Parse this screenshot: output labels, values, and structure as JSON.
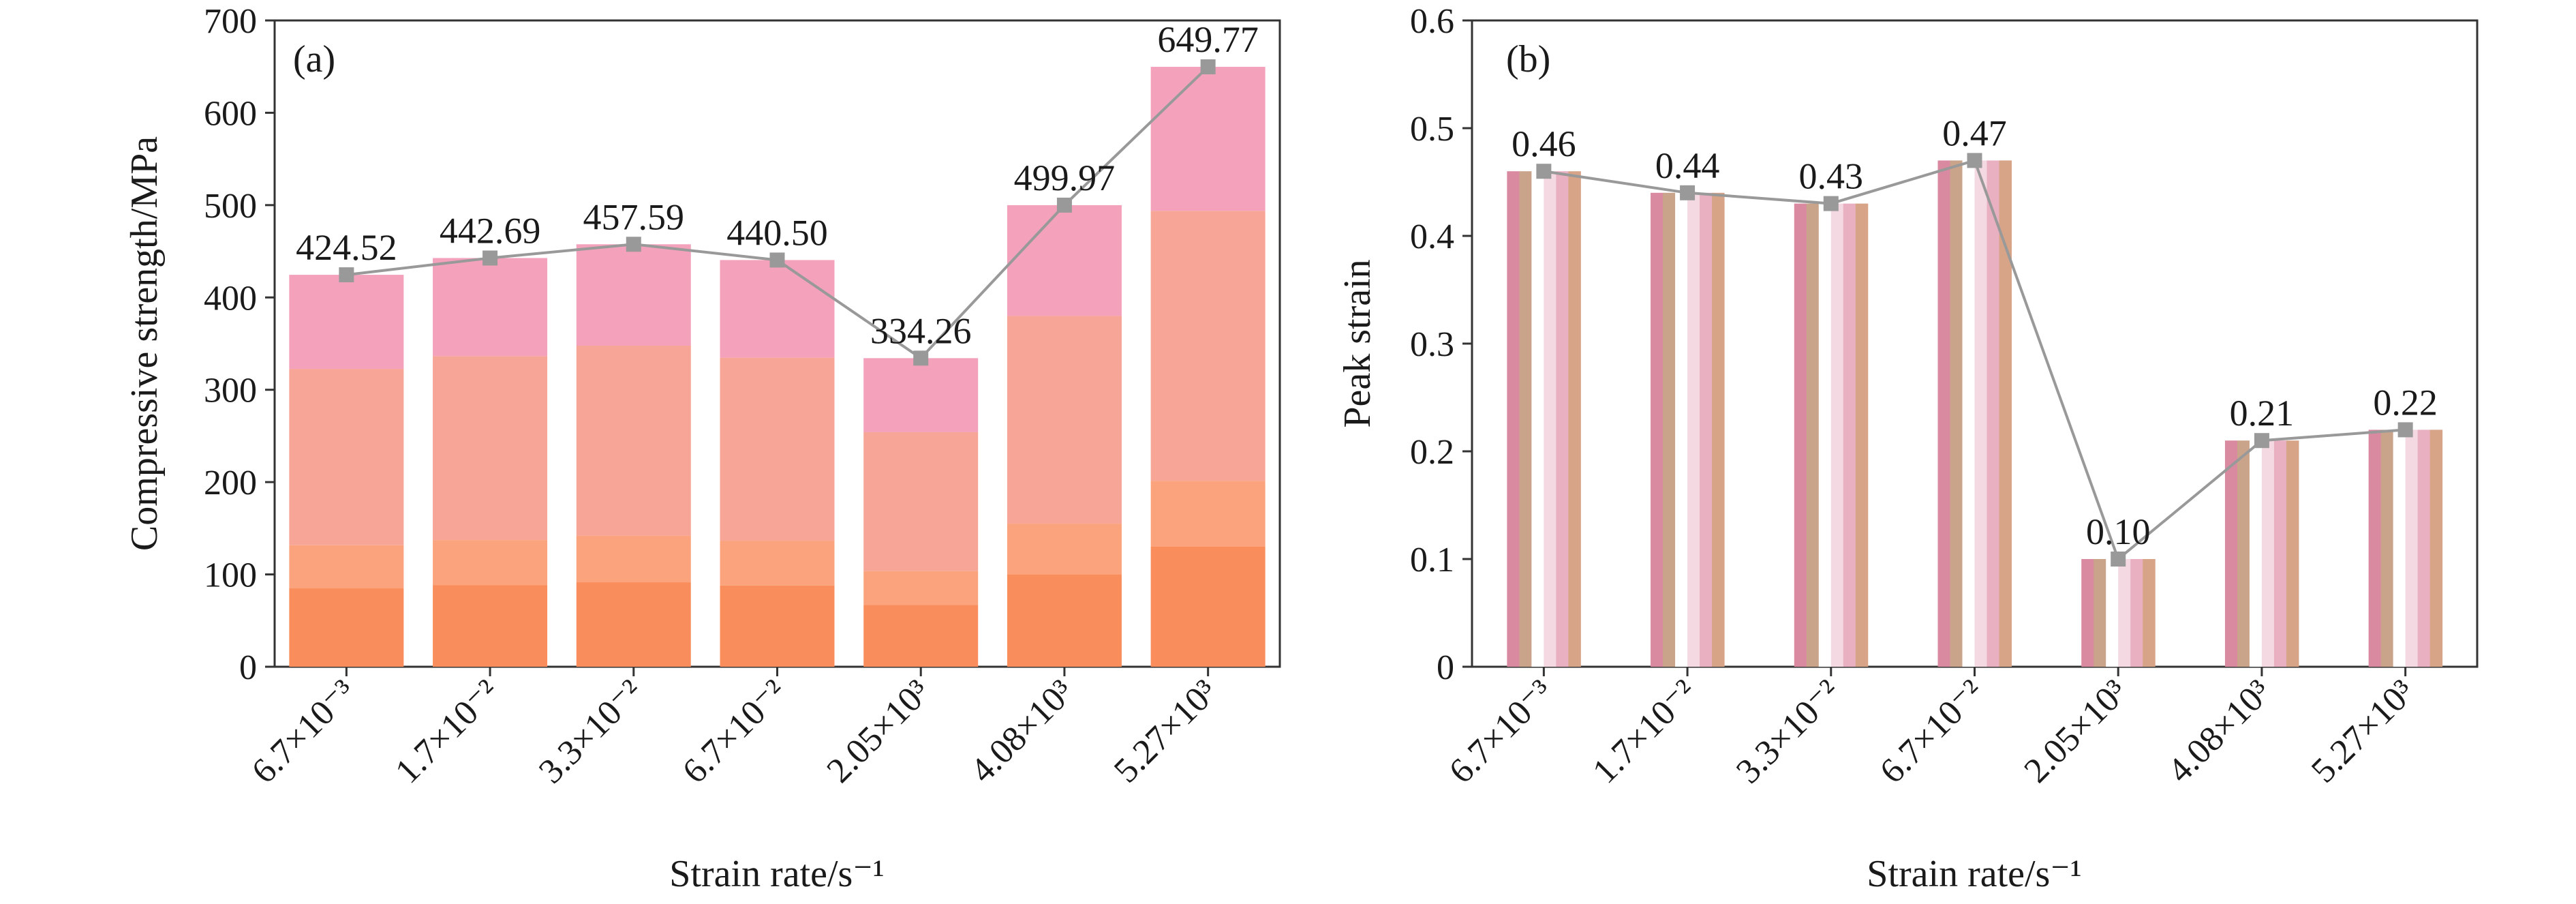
{
  "panels": [
    {
      "panel_label": "(a)",
      "chart_data": {
        "type": "bar",
        "categories": [
          "6.7×10⁻³",
          "1.7×10⁻²",
          "3.3×10⁻²",
          "6.7×10⁻²",
          "2.05×10³",
          "4.08×10³",
          "5.27×10³"
        ],
        "values": [
          424.52,
          442.69,
          457.59,
          440.5,
          334.26,
          499.97,
          649.77
        ],
        "data_labels": [
          "424.52",
          "442.69",
          "457.59",
          "440.50",
          "334.26",
          "499.97",
          "649.77"
        ],
        "ylabel": "Compressive strength/MPa",
        "xlabel": "Strain rate/s⁻¹",
        "ylim": [
          0,
          700
        ],
        "yticks": [
          0,
          100,
          200,
          300,
          400,
          500,
          600,
          700
        ],
        "ytick_labels": [
          "0",
          "100",
          "200",
          "300",
          "400",
          "500",
          "600",
          "700"
        ],
        "bar_style": "stacked color bands (orange bottom, salmon middle, pink top)",
        "band_colors": [
          "#f98e5c",
          "#fba37c",
          "#f6a596",
          "#f4a2bc"
        ],
        "overlay_line": {
          "values": [
            424.52,
            442.69,
            457.59,
            440.5,
            334.26,
            499.97,
            649.77
          ],
          "color": "#999999",
          "marker": "square"
        },
        "grid": false
      }
    },
    {
      "panel_label": "(b)",
      "chart_data": {
        "type": "bar",
        "categories": [
          "6.7×10⁻³",
          "1.7×10⁻²",
          "3.3×10⁻²",
          "6.7×10⁻²",
          "2.05×10³",
          "4.08×10³",
          "5.27×10³"
        ],
        "values": [
          0.46,
          0.44,
          0.43,
          0.47,
          0.1,
          0.21,
          0.22
        ],
        "data_labels": [
          "0.46",
          "0.44",
          "0.43",
          "0.47",
          "0.10",
          "0.21",
          "0.22"
        ],
        "ylabel": "Peak strain",
        "xlabel": "Strain rate/s⁻¹",
        "ylim": [
          0,
          0.6
        ],
        "yticks": [
          0,
          0.1,
          0.2,
          0.3,
          0.4,
          0.5,
          0.6
        ],
        "ytick_labels": [
          "0",
          "0.1",
          "0.2",
          "0.3",
          "0.4",
          "0.5",
          "0.6"
        ],
        "bar_style": "vertical stripes (pink, tan, white)",
        "stripe_colors": [
          "#d98aa0",
          "#c9a48a",
          "#ffffff",
          "#f4d9e2",
          "#e9b0c2",
          "#d7a488"
        ],
        "overlay_line": {
          "values": [
            0.46,
            0.44,
            0.43,
            0.47,
            0.1,
            0.21,
            0.22
          ],
          "color": "#999999",
          "marker": "square"
        },
        "grid": false
      }
    }
  ]
}
